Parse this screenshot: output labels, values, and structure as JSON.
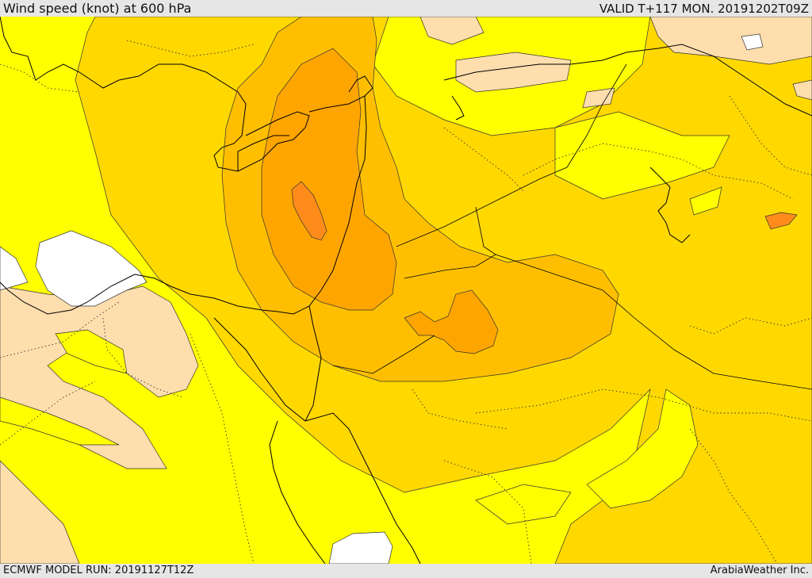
{
  "header": {
    "title": "Wind speed (knot) at 600 hPa",
    "valid": "VALID T+117 MON. 20191202T09Z"
  },
  "footer": {
    "model_run": "ECMWF MODEL RUN: 20191127T12Z",
    "credit": "ArabiaWeather Inc."
  },
  "colors": {
    "background": "#e6e6e6",
    "speed_band_1": "#ffffff",
    "speed_band_2": "#ffdead",
    "speed_band_3": "#ffff00",
    "speed_band_4": "#ffd800",
    "speed_band_5": "#ffbf00",
    "speed_band_6": "#ffa500",
    "speed_band_7": "#ff8c1a",
    "coastline": "#000000",
    "contour": "#333333"
  }
}
